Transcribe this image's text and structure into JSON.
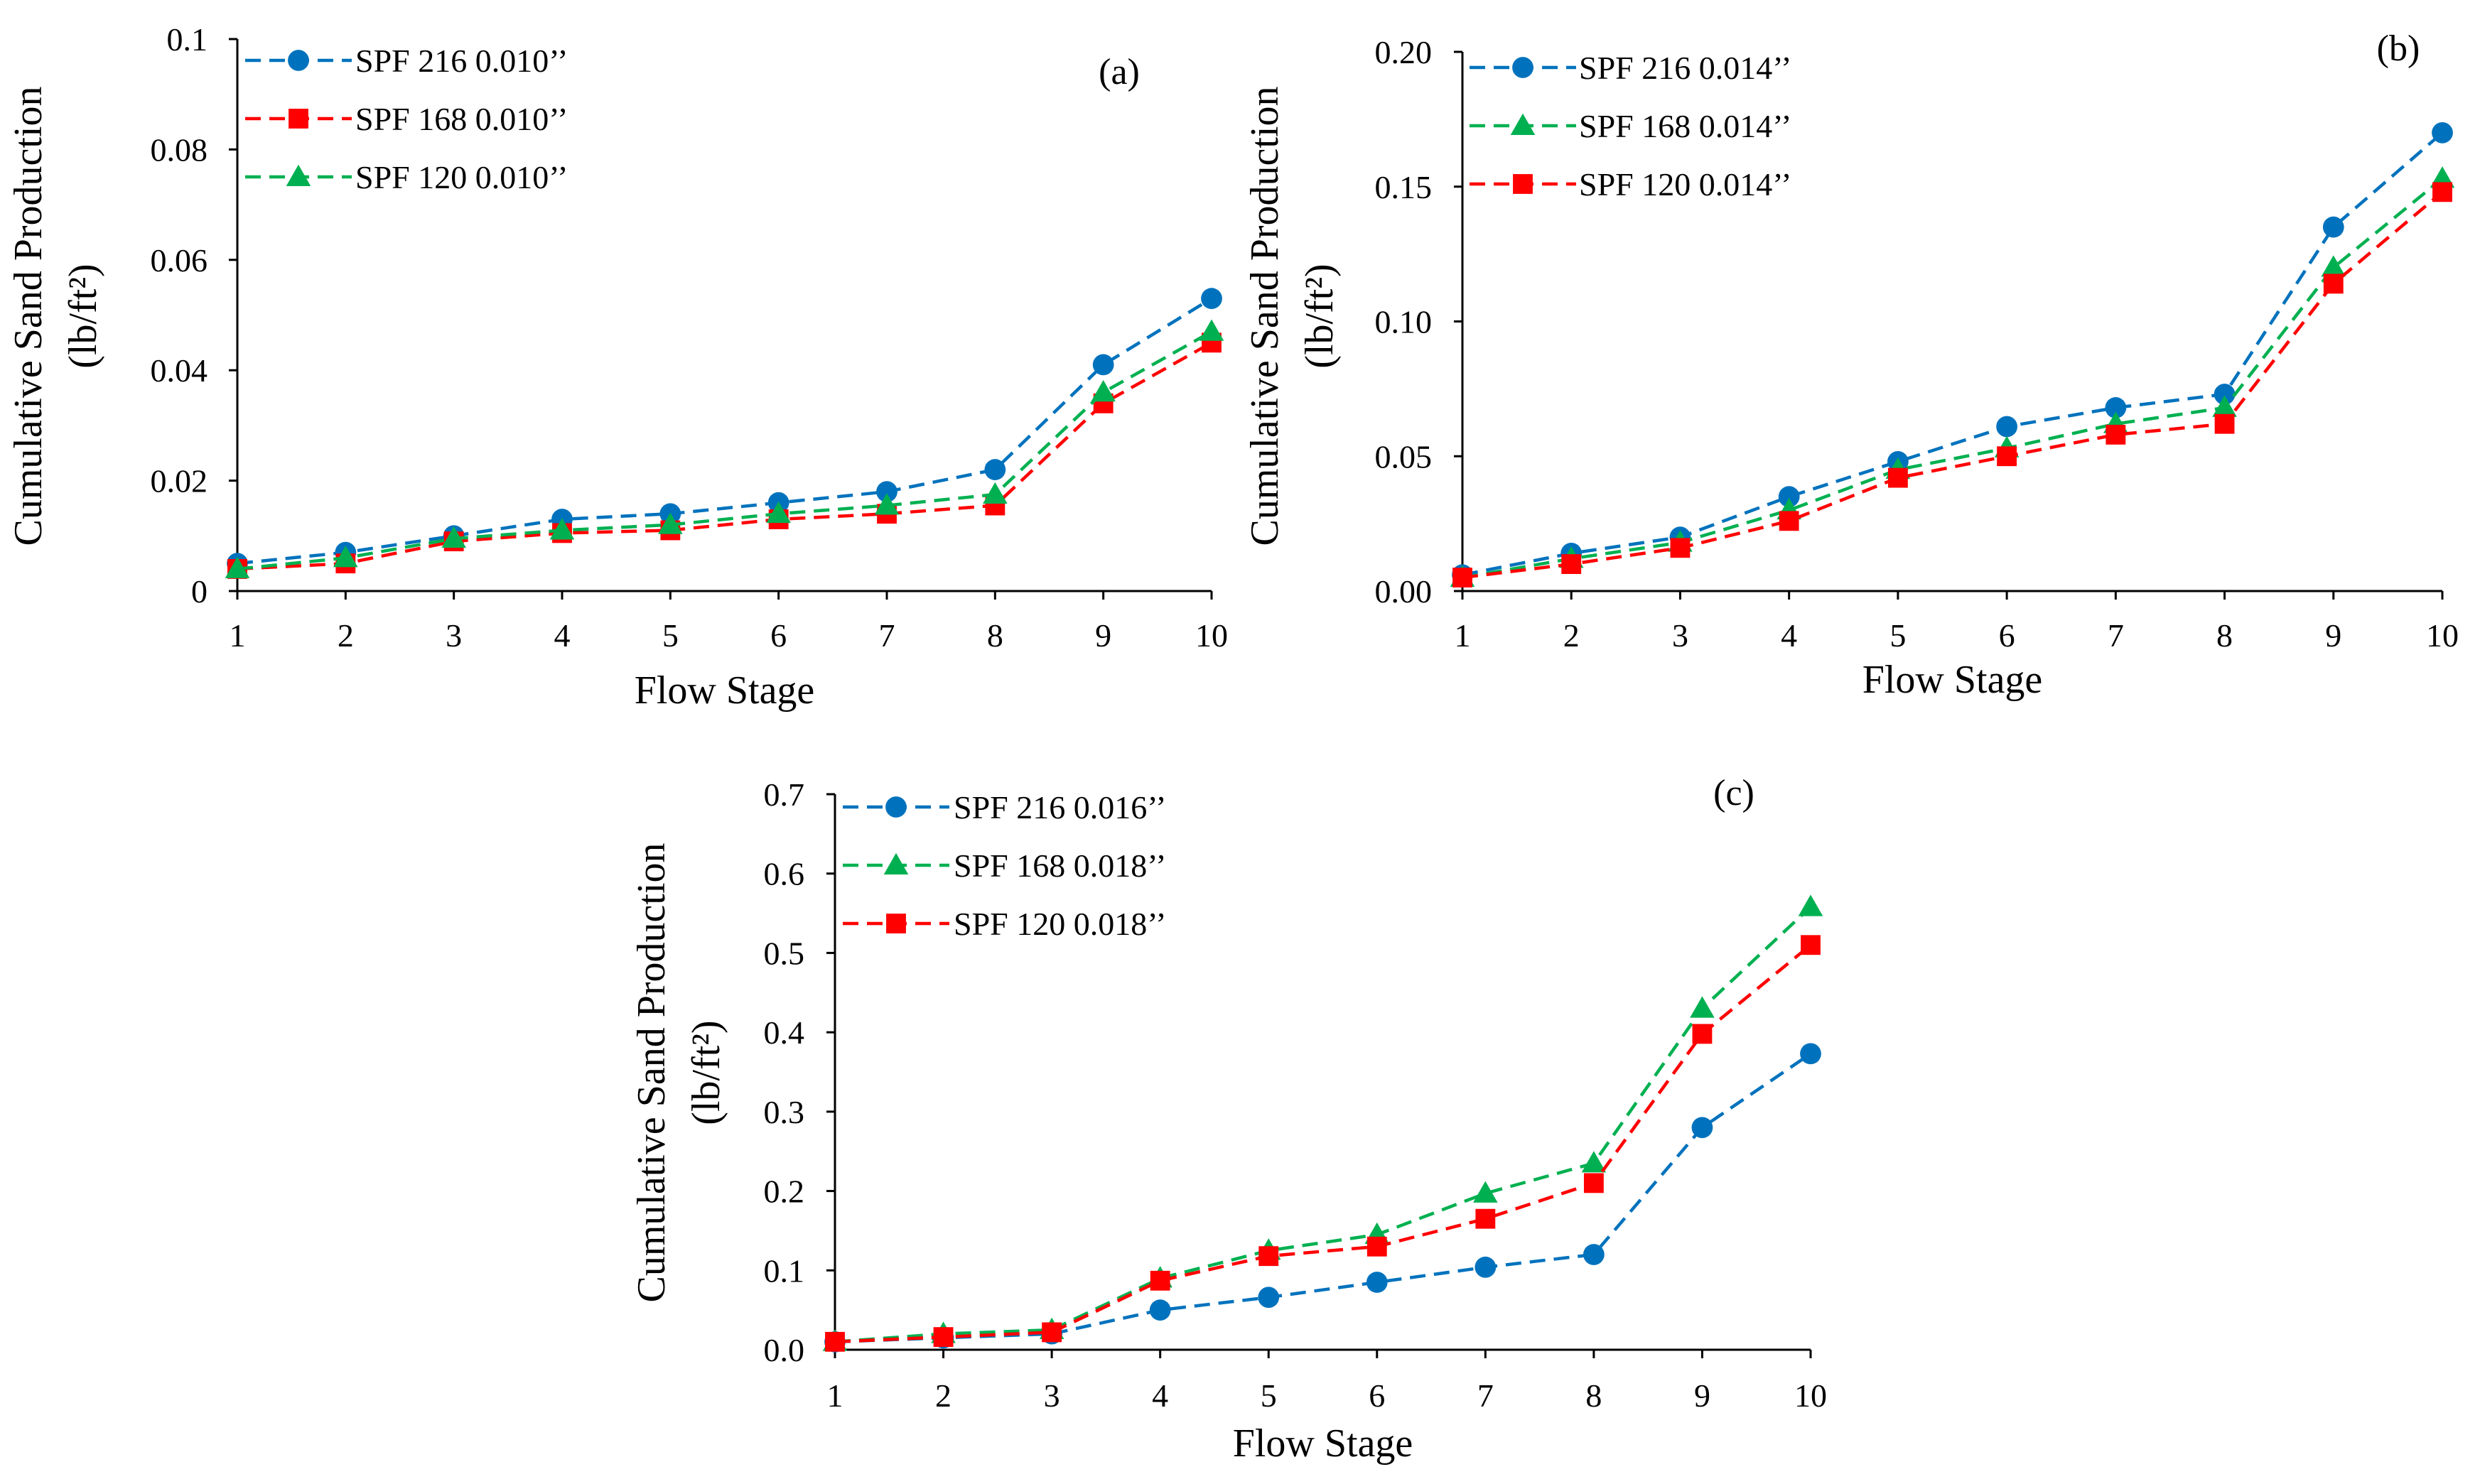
{
  "figure": {
    "description_none": "",
    "colors": {
      "blue": "#0072BD",
      "red": "#FF0000",
      "green": "#00B050",
      "axis": "#000000"
    }
  },
  "chart_data": [
    {
      "type": "line",
      "panel_label": "(a)",
      "xlabel": "Flow Stage",
      "ylabel_line1": "Cumulative Sand Production",
      "ylabel_line2": "(lb/ft²)",
      "x": [
        1,
        2,
        3,
        4,
        5,
        6,
        7,
        8,
        9,
        10
      ],
      "ylim": [
        0,
        0.1
      ],
      "yticks": [
        0,
        0.02,
        0.04,
        0.06,
        0.08,
        0.1
      ],
      "ytick_labels": [
        "0",
        "0.02",
        "0.04",
        "0.06",
        "0.08",
        "0.1"
      ],
      "grid": false,
      "legend_position": "top-left",
      "series": [
        {
          "name": "SPF 216 0.010’’",
          "color": "#0072BD",
          "marker": "circle",
          "values": [
            0.005,
            0.007,
            0.01,
            0.013,
            0.014,
            0.016,
            0.018,
            0.022,
            0.041,
            0.053
          ]
        },
        {
          "name": "SPF 168 0.010’’",
          "color": "#FF0000",
          "marker": "square",
          "values": [
            0.004,
            0.005,
            0.009,
            0.0105,
            0.011,
            0.013,
            0.014,
            0.0155,
            0.034,
            0.045
          ]
        },
        {
          "name": "SPF 120 0.010’’",
          "color": "#00B050",
          "marker": "triangle",
          "values": [
            0.004,
            0.006,
            0.0095,
            0.011,
            0.012,
            0.014,
            0.0155,
            0.0175,
            0.036,
            0.047
          ]
        }
      ]
    },
    {
      "type": "line",
      "panel_label": "(b)",
      "xlabel": "Flow Stage",
      "ylabel_line1": "Cumulative Sand Production",
      "ylabel_line2": "(lb/ft²)",
      "x": [
        1,
        2,
        3,
        4,
        5,
        6,
        7,
        8,
        9,
        10
      ],
      "ylim": [
        0,
        0.2
      ],
      "yticks": [
        0,
        0.05,
        0.1,
        0.15,
        0.2
      ],
      "ytick_labels": [
        "0.00",
        "0.05",
        "0.10",
        "0.15",
        "0.20"
      ],
      "grid": false,
      "legend_position": "top-left",
      "series": [
        {
          "name": "SPF 216 0.014’’",
          "color": "#0072BD",
          "marker": "circle",
          "values": [
            0.006,
            0.014,
            0.02,
            0.035,
            0.048,
            0.061,
            0.068,
            0.073,
            0.135,
            0.17
          ]
        },
        {
          "name": "SPF 168 0.014’’",
          "color": "#00B050",
          "marker": "triangle",
          "values": [
            0.005,
            0.012,
            0.018,
            0.03,
            0.045,
            0.053,
            0.062,
            0.068,
            0.12,
            0.153
          ]
        },
        {
          "name": "SPF 120 0.014’’",
          "color": "#FF0000",
          "marker": "square",
          "values": [
            0.005,
            0.01,
            0.016,
            0.026,
            0.042,
            0.05,
            0.058,
            0.062,
            0.114,
            0.148
          ]
        }
      ]
    },
    {
      "type": "line",
      "panel_label": "(c)",
      "xlabel": "Flow Stage",
      "ylabel_line1": "Cumulative Sand Production",
      "ylabel_line2": "(lb/ft²)",
      "x": [
        1,
        2,
        3,
        4,
        5,
        6,
        7,
        8,
        9,
        10
      ],
      "ylim": [
        0,
        0.7
      ],
      "yticks": [
        0,
        0.1,
        0.2,
        0.3,
        0.4,
        0.5,
        0.6,
        0.7
      ],
      "ytick_labels": [
        "0.0",
        "0.1",
        "0.2",
        "0.3",
        "0.4",
        "0.5",
        "0.6",
        "0.7"
      ],
      "grid": false,
      "legend_position": "top-left",
      "series": [
        {
          "name": "SPF 216 0.016’’",
          "color": "#0072BD",
          "marker": "circle",
          "values": [
            0.01,
            0.015,
            0.02,
            0.05,
            0.066,
            0.085,
            0.104,
            0.12,
            0.28,
            0.373
          ]
        },
        {
          "name": "SPF 168 0.018’’",
          "color": "#00B050",
          "marker": "triangle",
          "values": [
            0.01,
            0.02,
            0.025,
            0.09,
            0.125,
            0.145,
            0.197,
            0.235,
            0.43,
            0.558
          ]
        },
        {
          "name": "SPF 120 0.018’’",
          "color": "#FF0000",
          "marker": "square",
          "values": [
            0.01,
            0.016,
            0.022,
            0.087,
            0.118,
            0.13,
            0.165,
            0.21,
            0.398,
            0.51
          ]
        }
      ]
    }
  ]
}
